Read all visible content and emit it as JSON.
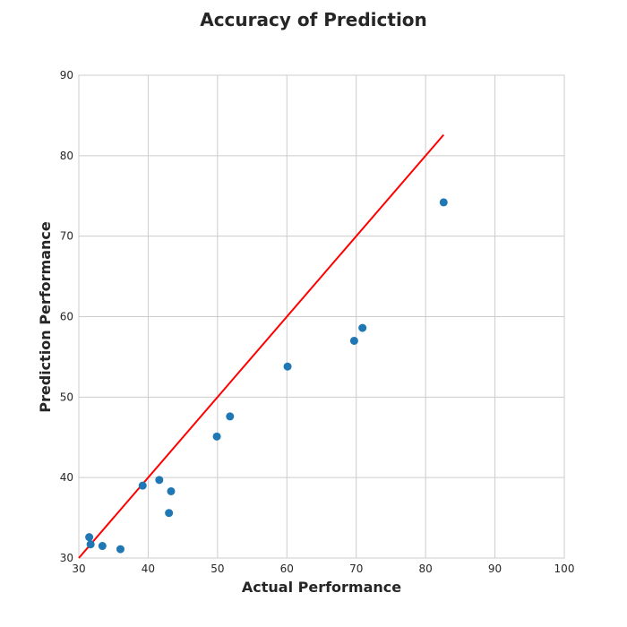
{
  "chart_data": {
    "type": "scatter",
    "title": "Accuracy of Prediction",
    "xlabel": "Actual Performance",
    "ylabel": "Prediction Performance",
    "xlim": [
      30,
      100
    ],
    "ylim": [
      30,
      90
    ],
    "xticks": [
      "30",
      "40",
      "50",
      "60",
      "70",
      "80",
      "90",
      "100"
    ],
    "yticks": [
      "30",
      "40",
      "50",
      "60",
      "70",
      "80",
      "90"
    ],
    "grid": true,
    "point_color": "#1f77b4",
    "line_color": "#ff0000",
    "points": [
      {
        "x": 31.5,
        "y": 32.6
      },
      {
        "x": 31.7,
        "y": 31.7
      },
      {
        "x": 33.4,
        "y": 31.5
      },
      {
        "x": 36.0,
        "y": 31.1
      },
      {
        "x": 39.2,
        "y": 39.0
      },
      {
        "x": 41.6,
        "y": 39.7
      },
      {
        "x": 43.3,
        "y": 38.3
      },
      {
        "x": 43.0,
        "y": 35.6
      },
      {
        "x": 49.9,
        "y": 45.1
      },
      {
        "x": 51.8,
        "y": 47.6
      },
      {
        "x": 60.1,
        "y": 53.8
      },
      {
        "x": 69.7,
        "y": 57.0
      },
      {
        "x": 70.9,
        "y": 58.6
      },
      {
        "x": 82.6,
        "y": 74.2
      }
    ],
    "reference_line": {
      "x": [
        30.0,
        82.6
      ],
      "y": [
        30.0,
        82.6
      ]
    }
  }
}
